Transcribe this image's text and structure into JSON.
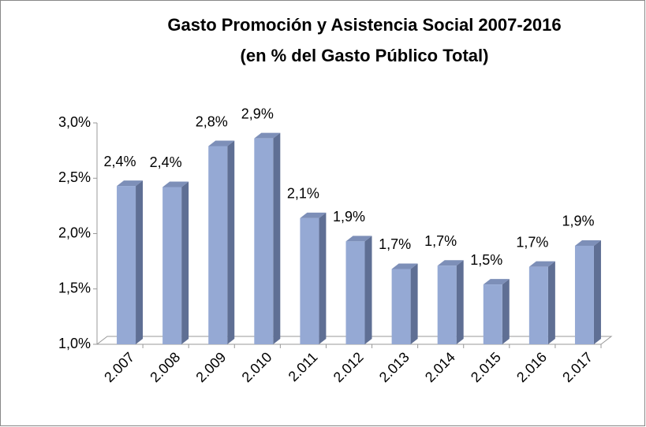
{
  "chart_data": {
    "type": "bar",
    "title": [
      "Gasto  Promoción y Asistencia Social 2007-2016",
      "(en % del Gasto Público Total)"
    ],
    "categories": [
      "2.007",
      "2.008",
      "2.009",
      "2.010",
      "2.011",
      "2.012",
      "2.013",
      "2.014",
      "2.015",
      "2.016",
      "2.017"
    ],
    "values": [
      2.43,
      2.42,
      2.79,
      2.86,
      2.14,
      1.93,
      1.68,
      1.71,
      1.54,
      1.7,
      1.89
    ],
    "value_labels": [
      "2,4%",
      "2,4%",
      "2,8%",
      "2,9%",
      "2,1%",
      "1,9%",
      "1,7%",
      "1,7%",
      "1,5%",
      "1,7%",
      "1,9%"
    ],
    "color": "#95a9d4",
    "ylim": [
      1.0,
      3.0
    ],
    "yticks": [
      {
        "value": 1.0,
        "label": "1,0%"
      },
      {
        "value": 1.5,
        "label": "1,5%"
      },
      {
        "value": 2.0,
        "label": "2,0%"
      },
      {
        "value": 2.5,
        "label": "2,5%"
      },
      {
        "value": 3.0,
        "label": "3,0%"
      }
    ],
    "grid": false
  }
}
